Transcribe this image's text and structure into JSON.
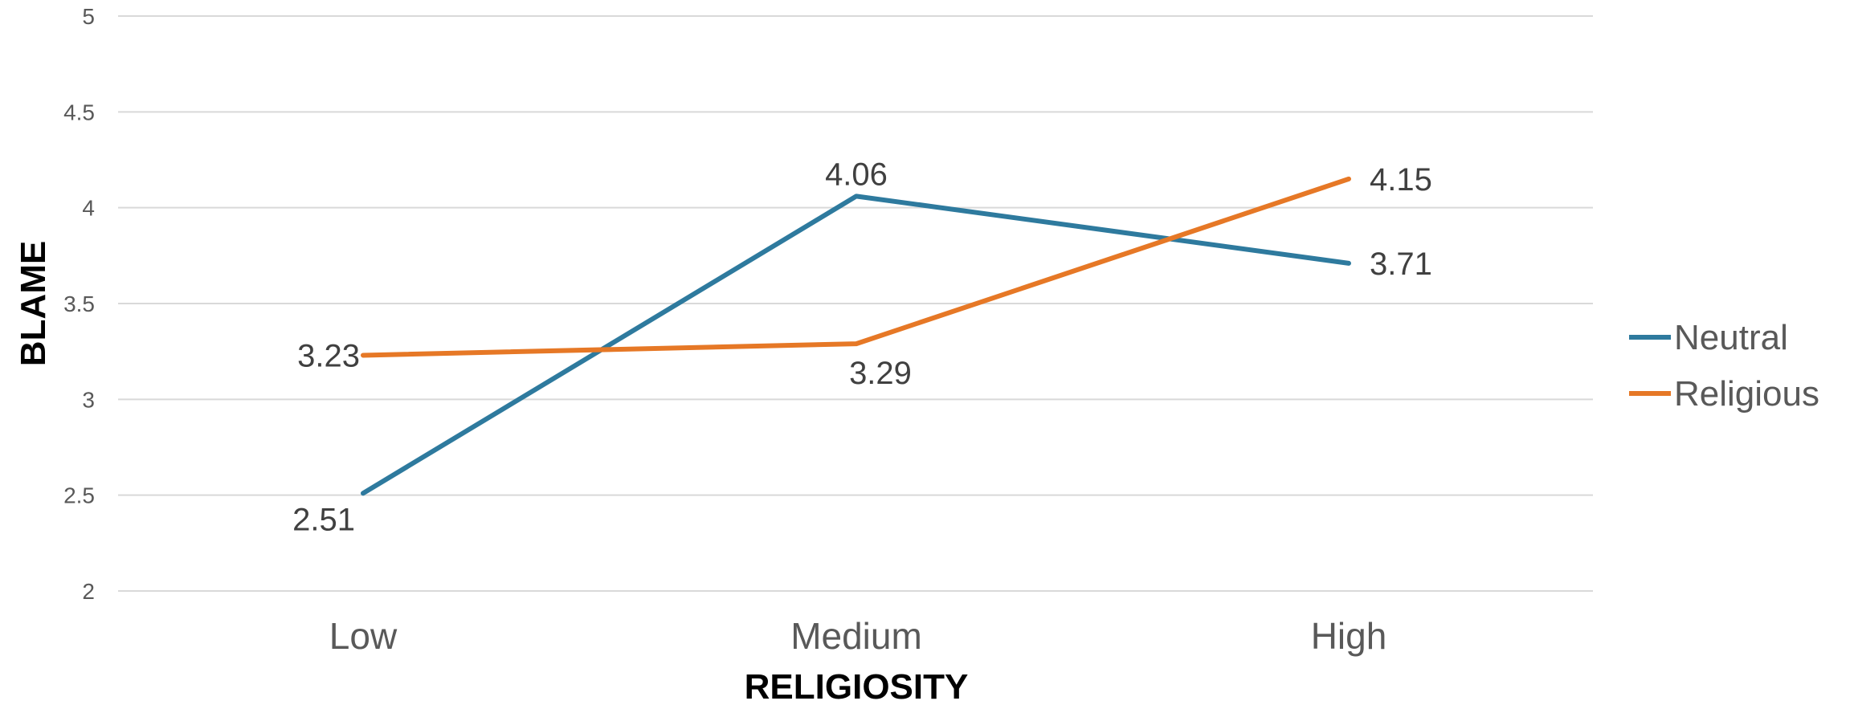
{
  "chart_data": {
    "type": "line",
    "title": "",
    "xlabel": "RELIGIOSITY",
    "ylabel": "BLAME",
    "categories": [
      "Low",
      "Medium",
      "High"
    ],
    "ylim": [
      2,
      5
    ],
    "yticks": [
      "2",
      "2.5",
      "3",
      "3.5",
      "4",
      "4.5",
      "5"
    ],
    "grid": true,
    "legend_position": "right",
    "series": [
      {
        "name": "Neutral",
        "values": [
          2.51,
          4.06,
          3.71
        ],
        "labels": [
          "2.51",
          "4.06",
          "3.71"
        ],
        "color": "#2e7a9e"
      },
      {
        "name": "Religious",
        "values": [
          3.23,
          3.29,
          4.15
        ],
        "labels": [
          "3.23",
          "3.29",
          "4.15"
        ],
        "color": "#e67826"
      }
    ]
  }
}
